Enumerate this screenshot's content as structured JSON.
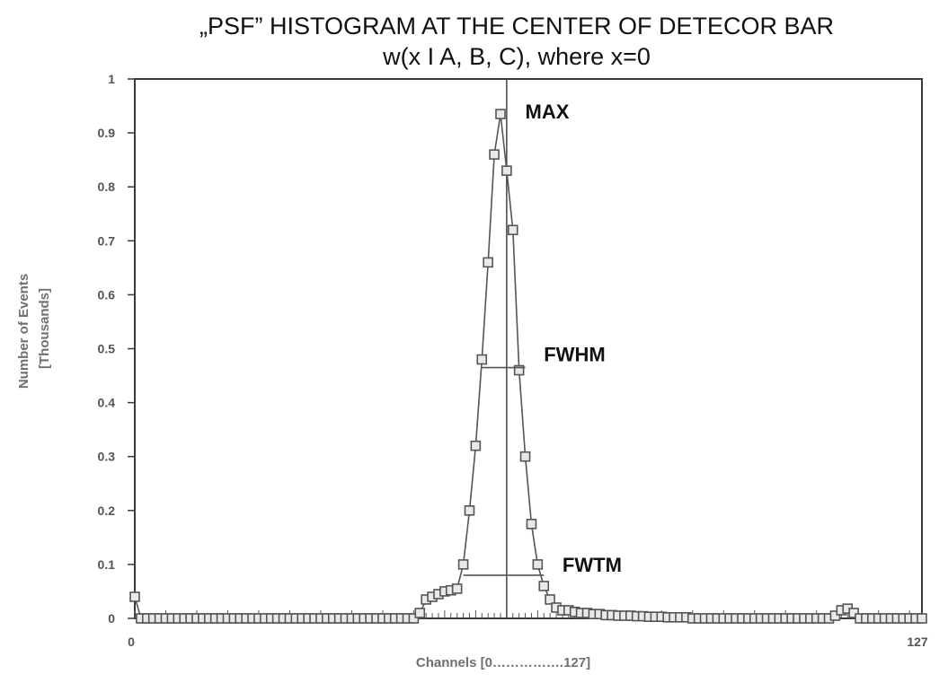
{
  "chart_data": {
    "type": "scatter",
    "title": "„PSF” HISTOGRAM AT THE CENTER OF DETECOR BAR",
    "subtitle": "w(x I A, B, C), where x=0",
    "xlabel": "Channels [0…………….127]",
    "ylabel": "Number of Events",
    "ylabel_unit": "[Thousands]",
    "xlim": [
      0,
      127
    ],
    "ylim": [
      0,
      1
    ],
    "x_ticks": [
      "0",
      "127"
    ],
    "y_ticks": [
      "0",
      "0.1",
      "0.2",
      "0.3",
      "0.4",
      "0.5",
      "0.6",
      "0.7",
      "0.8",
      "0.9",
      "1"
    ],
    "grid": false,
    "legend": "none",
    "marker": "open-square",
    "line_color": "#555555",
    "series": [
      {
        "values": [
          [
            0,
            0.04
          ],
          [
            1,
            0.0
          ],
          [
            2,
            0.0
          ],
          [
            3,
            0.0
          ],
          [
            4,
            0.0
          ],
          [
            5,
            0.0
          ],
          [
            6,
            0.0
          ],
          [
            7,
            0.0
          ],
          [
            8,
            0.0
          ],
          [
            9,
            0.0
          ],
          [
            10,
            0.0
          ],
          [
            11,
            0.0
          ],
          [
            12,
            0.0
          ],
          [
            13,
            0.0
          ],
          [
            14,
            0.0
          ],
          [
            15,
            0.0
          ],
          [
            16,
            0.0
          ],
          [
            17,
            0.0
          ],
          [
            18,
            0.0
          ],
          [
            19,
            0.0
          ],
          [
            20,
            0.0
          ],
          [
            21,
            0.0
          ],
          [
            22,
            0.0
          ],
          [
            23,
            0.0
          ],
          [
            24,
            0.0
          ],
          [
            25,
            0.0
          ],
          [
            26,
            0.0
          ],
          [
            27,
            0.0
          ],
          [
            28,
            0.0
          ],
          [
            29,
            0.0
          ],
          [
            30,
            0.0
          ],
          [
            31,
            0.0
          ],
          [
            32,
            0.0
          ],
          [
            33,
            0.0
          ],
          [
            34,
            0.0
          ],
          [
            35,
            0.0
          ],
          [
            36,
            0.0
          ],
          [
            37,
            0.0
          ],
          [
            38,
            0.0
          ],
          [
            39,
            0.0
          ],
          [
            40,
            0.0
          ],
          [
            41,
            0.0
          ],
          [
            42,
            0.0
          ],
          [
            43,
            0.0
          ],
          [
            44,
            0.0
          ],
          [
            45,
            0.0
          ],
          [
            46,
            0.01
          ],
          [
            47,
            0.035
          ],
          [
            48,
            0.04
          ],
          [
            49,
            0.045
          ],
          [
            50,
            0.05
          ],
          [
            51,
            0.052
          ],
          [
            52,
            0.055
          ],
          [
            53,
            0.1
          ],
          [
            54,
            0.2
          ],
          [
            55,
            0.32
          ],
          [
            56,
            0.48
          ],
          [
            57,
            0.66
          ],
          [
            58,
            0.86
          ],
          [
            59,
            0.935
          ],
          [
            60,
            0.83
          ],
          [
            61,
            0.72
          ],
          [
            62,
            0.46
          ],
          [
            63,
            0.3
          ],
          [
            64,
            0.175
          ],
          [
            65,
            0.1
          ],
          [
            66,
            0.06
          ],
          [
            67,
            0.035
          ],
          [
            68,
            0.02
          ],
          [
            69,
            0.015
          ],
          [
            70,
            0.015
          ],
          [
            71,
            0.012
          ],
          [
            72,
            0.01
          ],
          [
            73,
            0.01
          ],
          [
            74,
            0.008
          ],
          [
            75,
            0.008
          ],
          [
            76,
            0.006
          ],
          [
            77,
            0.006
          ],
          [
            78,
            0.005
          ],
          [
            79,
            0.005
          ],
          [
            80,
            0.005
          ],
          [
            81,
            0.004
          ],
          [
            82,
            0.004
          ],
          [
            83,
            0.003
          ],
          [
            84,
            0.003
          ],
          [
            85,
            0.003
          ],
          [
            86,
            0.002
          ],
          [
            87,
            0.002
          ],
          [
            88,
            0.002
          ],
          [
            89,
            0.002
          ],
          [
            90,
            0.0
          ],
          [
            91,
            0.0
          ],
          [
            92,
            0.0
          ],
          [
            93,
            0.0
          ],
          [
            94,
            0.0
          ],
          [
            95,
            0.0
          ],
          [
            96,
            0.0
          ],
          [
            97,
            0.0
          ],
          [
            98,
            0.0
          ],
          [
            99,
            0.0
          ],
          [
            100,
            0.0
          ],
          [
            101,
            0.0
          ],
          [
            102,
            0.0
          ],
          [
            103,
            0.0
          ],
          [
            104,
            0.0
          ],
          [
            105,
            0.0
          ],
          [
            106,
            0.0
          ],
          [
            107,
            0.0
          ],
          [
            108,
            0.0
          ],
          [
            109,
            0.0
          ],
          [
            110,
            0.0
          ],
          [
            111,
            0.0
          ],
          [
            112,
            0.0
          ],
          [
            113,
            0.005
          ],
          [
            114,
            0.015
          ],
          [
            115,
            0.018
          ],
          [
            116,
            0.01
          ],
          [
            117,
            0.0
          ],
          [
            118,
            0.0
          ],
          [
            119,
            0.0
          ],
          [
            120,
            0.0
          ],
          [
            121,
            0.0
          ],
          [
            122,
            0.0
          ],
          [
            123,
            0.0
          ],
          [
            124,
            0.0
          ],
          [
            125,
            0.0
          ],
          [
            126,
            0.0
          ],
          [
            127,
            0.0
          ]
        ]
      }
    ],
    "center_line_x": 60,
    "annotations": [
      {
        "text": "MAX",
        "x": 63,
        "y": 0.94
      },
      {
        "text": "FWHM",
        "x": 66,
        "y": 0.49,
        "x_from": 56,
        "x_to": 63,
        "level": 0.465
      },
      {
        "text": "FWTM",
        "x": 69,
        "y": 0.1,
        "x_from": 53,
        "x_to": 66,
        "level": 0.08
      }
    ]
  }
}
